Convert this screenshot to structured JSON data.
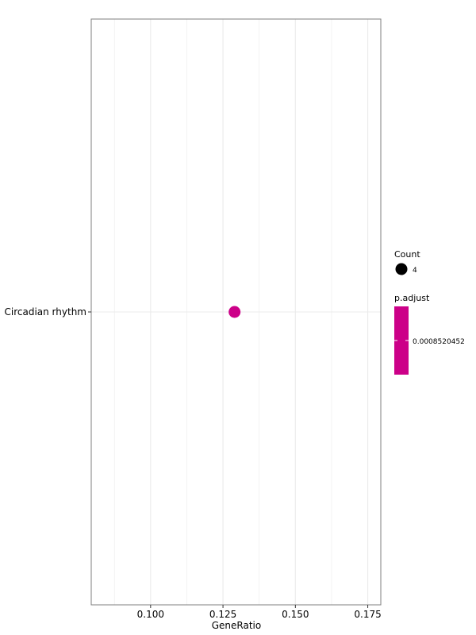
{
  "chart_data": {
    "type": "scatter",
    "xlabel": "GeneRatio",
    "ylabel": "",
    "xlim": [
      0.0795,
      0.1795
    ],
    "x_ticks": [
      0.1,
      0.125,
      0.15,
      0.175
    ],
    "x_tick_labels": [
      "0.100",
      "0.125",
      "0.150",
      "0.175"
    ],
    "categories": [
      "Circadian rhythm"
    ],
    "points": [
      {
        "category": "Circadian rhythm",
        "x": 0.129,
        "count": 4,
        "p_adjust": 0.0008520452
      }
    ],
    "grid": true,
    "legend_position": "right",
    "legends": {
      "size": {
        "title": "Count",
        "entries": [
          {
            "label": "4"
          }
        ]
      },
      "color": {
        "title": "p.adjust",
        "label": "0.0008520452",
        "color": "#cc0088"
      }
    },
    "colors": {
      "point": "#cc0088",
      "panel_border": "#7f7f7f",
      "grid": "#ebebeb"
    }
  }
}
